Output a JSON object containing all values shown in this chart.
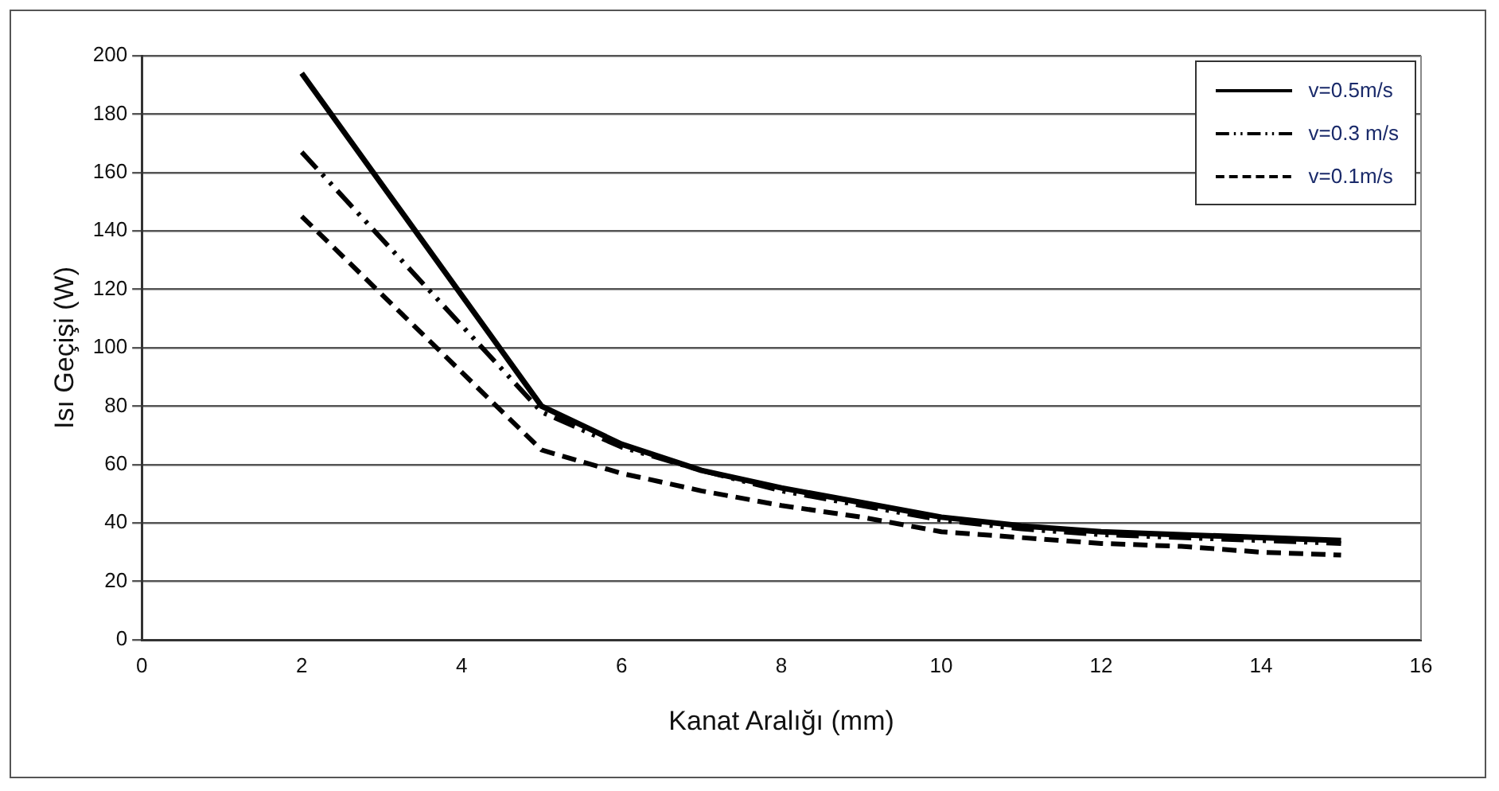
{
  "chart_data": {
    "type": "line",
    "xlabel": "Kanat Aralığı (mm)",
    "ylabel": "Isı Geçişi (W)",
    "x": [
      2,
      5,
      6,
      7,
      8,
      9,
      10,
      11,
      12,
      13,
      14,
      15
    ],
    "series": [
      {
        "name": "v=0.5m/s",
        "color": "#000000",
        "line_style": "solid",
        "values": [
          194,
          80,
          67,
          58,
          52,
          47,
          42,
          39,
          37,
          36,
          35,
          34
        ]
      },
      {
        "name": "v=0.3 m/s",
        "color": "#000000",
        "line_style": "dashdot",
        "values": [
          167,
          78,
          66,
          58,
          51,
          46,
          41,
          38,
          36,
          35,
          34,
          33
        ]
      },
      {
        "name": "v=0.1m/s",
        "color": "#000000",
        "line_style": "dashed",
        "values": [
          145,
          65,
          57,
          51,
          46,
          42,
          37,
          35,
          33,
          32,
          30,
          29
        ]
      }
    ],
    "xlim": [
      0,
      16
    ],
    "xticks": [
      0,
      2,
      4,
      6,
      8,
      10,
      12,
      14,
      16
    ],
    "ylim": [
      0,
      200
    ],
    "yticks": [
      0,
      20,
      40,
      60,
      80,
      100,
      120,
      140,
      160,
      180,
      200
    ],
    "grid": "y",
    "legend": "top right",
    "marker": "none"
  }
}
